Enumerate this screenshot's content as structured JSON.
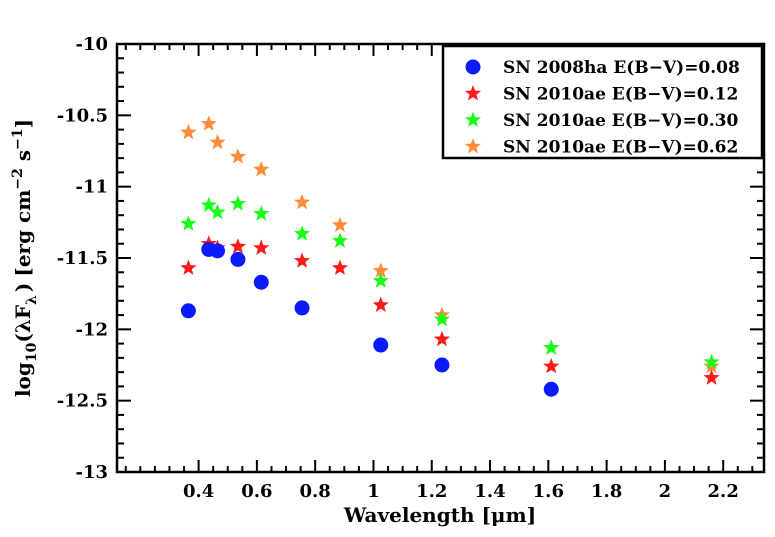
{
  "chart_data": {
    "type": "scatter",
    "title": "",
    "xlabel": "Wavelength [μm]",
    "ylabel_parts": {
      "prefix": "log",
      "sub1": "10",
      "paren_open": "(",
      "lambda": "λ",
      "flux": "F",
      "sub2": "λ",
      "paren_close": ")",
      "units": "[erg cm",
      "exp1": "−2",
      "mid": " s",
      "exp2": "−1",
      "end": "]"
    },
    "xlim": [
      0.12,
      2.34
    ],
    "ylim": [
      -13,
      -10
    ],
    "xticks": [
      0.4,
      0.6,
      0.8,
      1.0,
      1.2,
      1.4,
      1.6,
      1.8,
      2.0,
      2.2
    ],
    "xtick_labels": [
      "0.4",
      "0.6",
      "0.8",
      "1",
      "1.2",
      "1.4",
      "1.6",
      "1.8",
      "2",
      "2.2"
    ],
    "yticks": [
      -13,
      -12.5,
      -12,
      -11.5,
      -11,
      -10.5,
      -10
    ],
    "ytick_labels": [
      "-13",
      "-12.5",
      "-12",
      "-11.5",
      "-11",
      "-10.5",
      "-10"
    ],
    "x_minor_step": 0.05,
    "y_minor_step": 0.1,
    "legend_position": "top-right",
    "series": [
      {
        "name": "SN 2008ha E(B−V)=0.08",
        "marker": "circle",
        "color": "#0a1aff",
        "x": [
          0.365,
          0.435,
          0.465,
          0.535,
          0.615,
          0.755,
          1.025,
          1.235,
          1.61
        ],
        "y": [
          -11.87,
          -11.44,
          -11.45,
          -11.51,
          -11.67,
          -11.85,
          -12.11,
          -12.25,
          -12.42
        ]
      },
      {
        "name": "SN 2010ae E(B−V)=0.12",
        "marker": "star",
        "color": "#ff1a1a",
        "x": [
          0.365,
          0.435,
          0.465,
          0.535,
          0.615,
          0.755,
          0.885,
          1.025,
          1.235,
          1.61,
          2.16
        ],
        "y": [
          -11.57,
          -11.4,
          -11.43,
          -11.42,
          -11.43,
          -11.52,
          -11.57,
          -11.83,
          -12.07,
          -12.26,
          -12.34
        ]
      },
      {
        "name": "SN 2010ae E(B−V)=0.30",
        "marker": "star",
        "color": "#1aff1a",
        "x": [
          0.365,
          0.435,
          0.465,
          0.535,
          0.615,
          0.755,
          0.885,
          1.025,
          1.235,
          1.61,
          2.16
        ],
        "y": [
          -11.26,
          -11.13,
          -11.18,
          -11.12,
          -11.19,
          -11.33,
          -11.38,
          -11.66,
          -11.93,
          -12.13,
          -12.23
        ]
      },
      {
        "name": "SN 2010ae E(B−V)=0.62",
        "marker": "star",
        "color": "#ff8c3c",
        "x": [
          0.365,
          0.435,
          0.465,
          0.535,
          0.615,
          0.755,
          0.885,
          1.025,
          1.235,
          1.61,
          2.16
        ],
        "y": [
          -10.62,
          -10.56,
          -10.69,
          -10.79,
          -10.88,
          -11.11,
          -11.27,
          -11.59,
          -11.9,
          -12.13,
          -12.26
        ]
      }
    ]
  }
}
